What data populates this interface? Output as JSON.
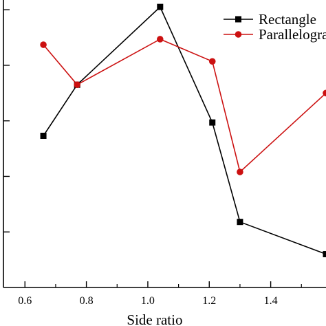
{
  "chart_data": {
    "type": "line",
    "xlabel": "Side ratio",
    "ylabel": "",
    "xlim": [
      0.53,
      1.58
    ],
    "ylim": [
      0,
      5.2
    ],
    "x_ticks": [
      0.6,
      0.8,
      1.0,
      1.2,
      1.4
    ],
    "x_tick_labels": [
      "0.6",
      "0.8",
      "1.0",
      "1.2",
      "1.4"
    ],
    "y_ticks": [
      1,
      2,
      3,
      4,
      5
    ],
    "grid": false,
    "legend_position": "top-right",
    "series": [
      {
        "name": "Rectangle",
        "color": "#000000",
        "marker": "square",
        "x": [
          0.66,
          0.77,
          1.04,
          1.21,
          1.3,
          1.58
        ],
        "y": [
          2.73,
          3.65,
          5.05,
          2.97,
          1.18,
          0.6
        ]
      },
      {
        "name": "Parallelogram",
        "color": "#cc1111",
        "marker": "circle",
        "x": [
          0.66,
          0.77,
          1.04,
          1.21,
          1.3,
          1.58
        ],
        "y": [
          4.37,
          3.65,
          4.47,
          4.07,
          2.08,
          3.5
        ]
      }
    ]
  }
}
